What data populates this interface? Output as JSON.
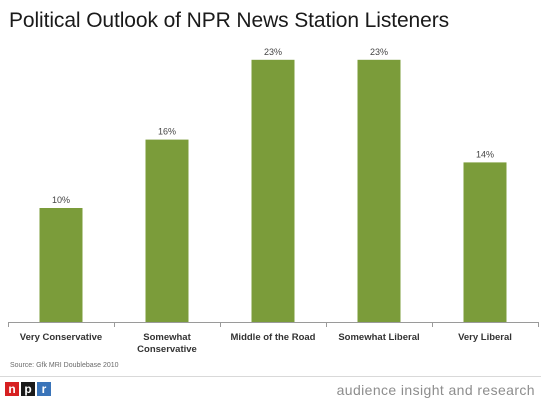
{
  "title": "Political Outlook of NPR News Station Listeners",
  "source": "Source: Gfk MRI Doublebase 2010",
  "logo": {
    "letters": [
      "n",
      "p",
      "r"
    ],
    "colors": [
      "#d62021",
      "#1a1a1a",
      "#3a74b9"
    ]
  },
  "tagline": "audience insight and research",
  "chart_data": {
    "type": "bar",
    "categories": [
      "Very Conservative",
      "Somewhat Conservative",
      "Middle of the Road",
      "Somewhat Liberal",
      "Very Liberal"
    ],
    "category_lines": [
      [
        "Very Conservative"
      ],
      [
        "Somewhat",
        "Conservative"
      ],
      [
        "Middle of the Road"
      ],
      [
        "Somewhat Liberal"
      ],
      [
        "Very Liberal"
      ]
    ],
    "values": [
      10,
      16,
      23,
      23,
      14
    ],
    "data_labels": [
      "10%",
      "16%",
      "23%",
      "23%",
      "14%"
    ],
    "ylim": [
      0,
      25
    ],
    "grid": false,
    "bar_color": "#7b9c3a"
  }
}
